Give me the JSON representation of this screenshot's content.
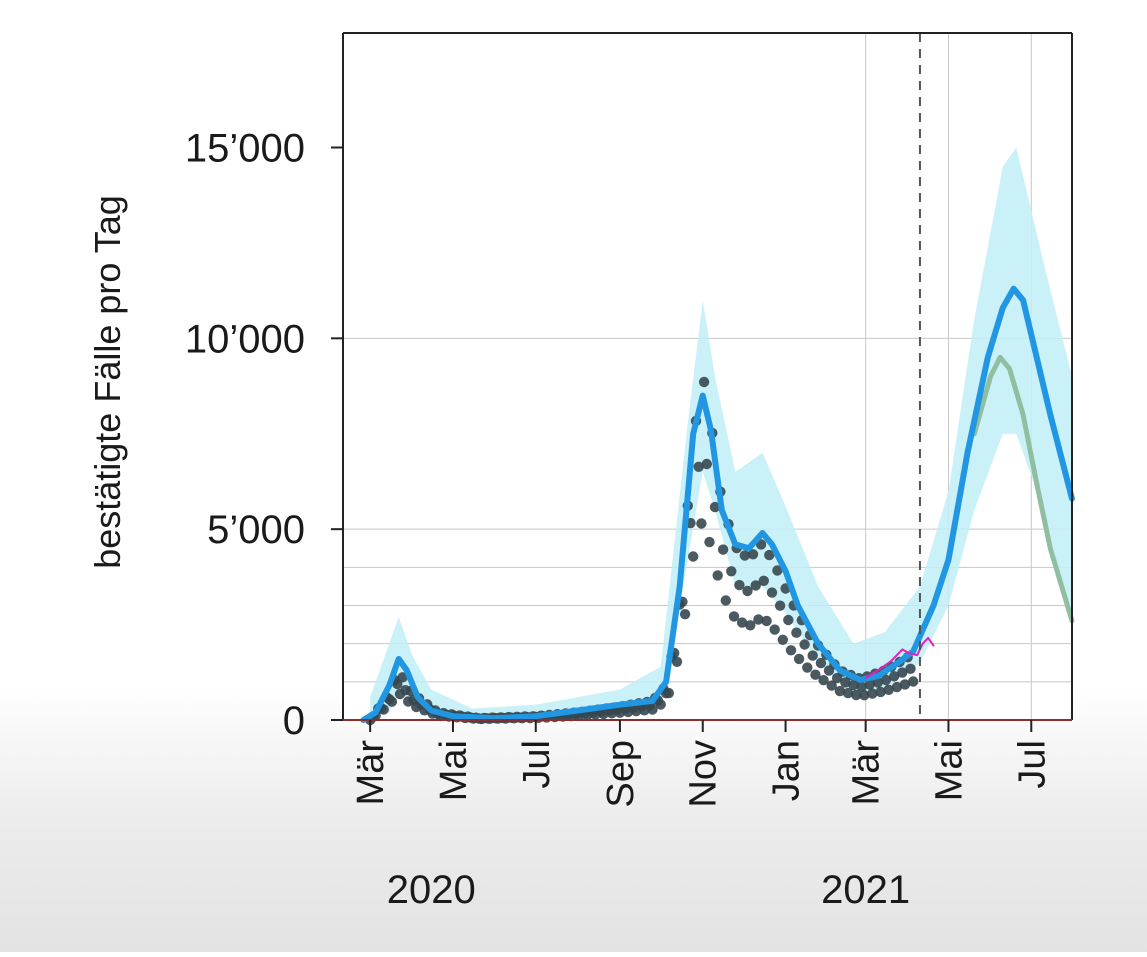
{
  "chart_data": {
    "type": "line",
    "ylabel": "bestätigte Fälle pro Tag",
    "ylim": [
      0,
      18000
    ],
    "y_ticks": [
      {
        "value": 0,
        "label": "0"
      },
      {
        "value": 5000,
        "label": "5’000"
      },
      {
        "value": 10000,
        "label": "10’000"
      },
      {
        "value": 15000,
        "label": "15’000"
      }
    ],
    "x_ticks": [
      {
        "date": "2020-03-01",
        "label": "Mär"
      },
      {
        "date": "2020-05-01",
        "label": "Mai"
      },
      {
        "date": "2020-07-01",
        "label": "Jul"
      },
      {
        "date": "2020-09-01",
        "label": "Sep"
      },
      {
        "date": "2020-11-01",
        "label": "Nov"
      },
      {
        "date": "2021-01-01",
        "label": "Jan"
      },
      {
        "date": "2021-03-01",
        "label": "Mär"
      },
      {
        "date": "2021-05-01",
        "label": "Mai"
      },
      {
        "date": "2021-07-01",
        "label": "Jul"
      }
    ],
    "year_labels": [
      {
        "date": "2020-04-15",
        "label": "2020"
      },
      {
        "date": "2021-03-01",
        "label": "2021"
      }
    ],
    "xlim": [
      "2020-02-10",
      "2021-07-31"
    ],
    "grid": true,
    "legend": "none",
    "today_marker": "2021-04-10",
    "colors": {
      "model": "#2196e3",
      "band": "#bfeff6",
      "observed": "#37474f",
      "alt_scenario": "#8fbfa0",
      "recent": "#e020c0",
      "axis": "#222222",
      "grid": "#c8c8c8",
      "zero_line": "#8b2e2e"
    },
    "series": [
      {
        "role": "model",
        "style": "line",
        "points": [
          [
            "2020-02-25",
            0
          ],
          [
            "2020-03-05",
            200
          ],
          [
            "2020-03-15",
            900
          ],
          [
            "2020-03-22",
            1600
          ],
          [
            "2020-03-28",
            1300
          ],
          [
            "2020-04-05",
            600
          ],
          [
            "2020-04-15",
            250
          ],
          [
            "2020-05-01",
            100
          ],
          [
            "2020-06-01",
            50
          ],
          [
            "2020-07-01",
            100
          ],
          [
            "2020-08-01",
            250
          ],
          [
            "2020-09-01",
            400
          ],
          [
            "2020-09-25",
            500
          ],
          [
            "2020-10-05",
            1000
          ],
          [
            "2020-10-15",
            3500
          ],
          [
            "2020-10-25",
            7500
          ],
          [
            "2020-11-01",
            8500
          ],
          [
            "2020-11-07",
            7600
          ],
          [
            "2020-11-15",
            5500
          ],
          [
            "2020-11-25",
            4600
          ],
          [
            "2020-12-05",
            4500
          ],
          [
            "2020-12-15",
            4900
          ],
          [
            "2020-12-22",
            4600
          ],
          [
            "2021-01-01",
            3900
          ],
          [
            "2021-01-10",
            3000
          ],
          [
            "2021-01-25",
            2000
          ],
          [
            "2021-02-10",
            1300
          ],
          [
            "2021-02-25",
            1050
          ],
          [
            "2021-03-10",
            1150
          ],
          [
            "2021-03-25",
            1500
          ],
          [
            "2021-04-05",
            1800
          ],
          [
            "2021-04-10",
            2200
          ],
          [
            "2021-04-20",
            3000
          ],
          [
            "2021-05-01",
            4200
          ],
          [
            "2021-05-15",
            7000
          ],
          [
            "2021-05-30",
            9500
          ],
          [
            "2021-06-10",
            10800
          ],
          [
            "2021-06-18",
            11300
          ],
          [
            "2021-06-25",
            11000
          ],
          [
            "2021-07-05",
            9500
          ],
          [
            "2021-07-15",
            8000
          ],
          [
            "2021-07-31",
            5800
          ]
        ]
      },
      {
        "role": "band",
        "style": "area",
        "points": [
          [
            "2020-03-01",
            0,
            600
          ],
          [
            "2020-03-15",
            200,
            2000
          ],
          [
            "2020-03-22",
            800,
            2700
          ],
          [
            "2020-04-01",
            300,
            1700
          ],
          [
            "2020-04-15",
            80,
            800
          ],
          [
            "2020-05-15",
            20,
            300
          ],
          [
            "2020-07-01",
            30,
            400
          ],
          [
            "2020-09-01",
            150,
            800
          ],
          [
            "2020-10-01",
            400,
            1400
          ],
          [
            "2020-10-20",
            4000,
            7500
          ],
          [
            "2020-11-01",
            6500,
            11000
          ],
          [
            "2020-11-10",
            5500,
            9000
          ],
          [
            "2020-11-25",
            3500,
            6500
          ],
          [
            "2020-12-15",
            3500,
            7000
          ],
          [
            "2021-01-01",
            2800,
            5600
          ],
          [
            "2021-01-25",
            1500,
            3500
          ],
          [
            "2021-02-20",
            700,
            2000
          ],
          [
            "2021-03-15",
            800,
            2300
          ],
          [
            "2021-04-10",
            1500,
            3500
          ],
          [
            "2021-05-01",
            3000,
            6000
          ],
          [
            "2021-05-20",
            5500,
            10500
          ],
          [
            "2021-06-10",
            7500,
            14500
          ],
          [
            "2021-06-20",
            7500,
            15000
          ],
          [
            "2021-07-10",
            5500,
            12000
          ],
          [
            "2021-07-31",
            2500,
            9000
          ]
        ]
      },
      {
        "role": "alt_scenario",
        "style": "line",
        "points": [
          [
            "2021-05-20",
            7500
          ],
          [
            "2021-06-01",
            9000
          ],
          [
            "2021-06-08",
            9500
          ],
          [
            "2021-06-15",
            9200
          ],
          [
            "2021-06-25",
            8000
          ],
          [
            "2021-07-05",
            6200
          ],
          [
            "2021-07-15",
            4500
          ],
          [
            "2021-07-31",
            2600
          ]
        ]
      },
      {
        "role": "observed",
        "style": "scatter",
        "anchors": [
          [
            "2020-03-01",
            0
          ],
          [
            "2020-03-15",
            700
          ],
          [
            "2020-03-22",
            1300
          ],
          [
            "2020-04-01",
            700
          ],
          [
            "2020-04-20",
            200
          ],
          [
            "2020-05-20",
            50
          ],
          [
            "2020-07-01",
            100
          ],
          [
            "2020-08-01",
            200
          ],
          [
            "2020-09-01",
            350
          ],
          [
            "2020-09-25",
            500
          ],
          [
            "2020-10-05",
            900
          ],
          [
            "2020-10-15",
            2800
          ],
          [
            "2020-10-25",
            6800
          ],
          [
            "2020-11-01",
            8400
          ],
          [
            "2020-11-07",
            7200
          ],
          [
            "2020-11-15",
            5300
          ],
          [
            "2020-11-25",
            4200
          ],
          [
            "2020-12-05",
            3900
          ],
          [
            "2020-12-15",
            4300
          ],
          [
            "2020-12-25",
            3700
          ],
          [
            "2021-01-05",
            2900
          ],
          [
            "2021-01-20",
            2000
          ],
          [
            "2021-02-10",
            1200
          ],
          [
            "2021-02-25",
            1000
          ],
          [
            "2021-03-15",
            1200
          ],
          [
            "2021-03-31",
            1500
          ],
          [
            "2021-04-05",
            1600
          ]
        ]
      },
      {
        "role": "recent",
        "style": "line",
        "points": [
          [
            "2021-03-01",
            1100
          ],
          [
            "2021-03-10",
            1300
          ],
          [
            "2021-03-20",
            1550
          ],
          [
            "2021-03-28",
            1850
          ],
          [
            "2021-04-02",
            1750
          ],
          [
            "2021-04-08",
            1700
          ],
          [
            "2021-04-12",
            2000
          ],
          [
            "2021-04-16",
            2150
          ],
          [
            "2021-04-20",
            1950
          ]
        ]
      }
    ]
  }
}
